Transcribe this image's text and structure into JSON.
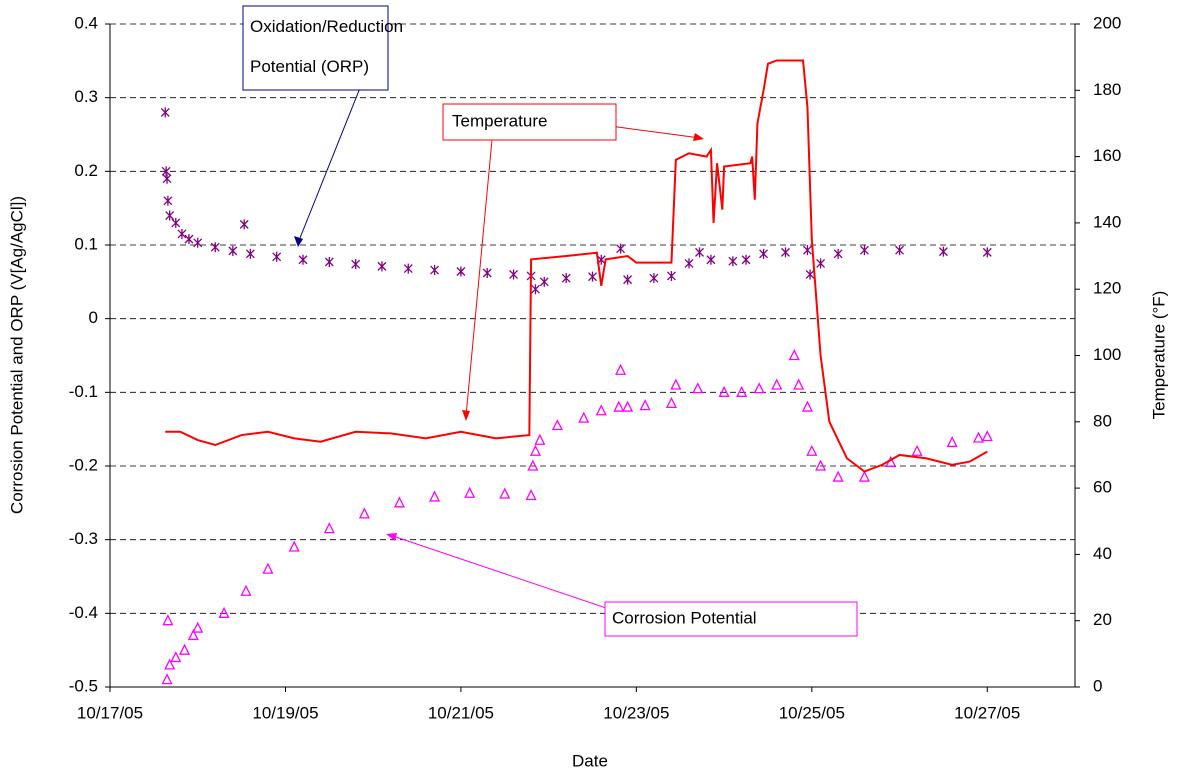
{
  "chart_data": {
    "type": "line",
    "x_label": "Date",
    "y_label": "Corrosion Potential and ORP (V[Ag/AgCl])",
    "y2_label": "Temperature (°F)",
    "xlim": [
      17,
      28
    ],
    "xticks": [
      {
        "value": 17,
        "label": "10/17/05"
      },
      {
        "value": 19,
        "label": "10/19/05"
      },
      {
        "value": 21,
        "label": "10/21/05"
      },
      {
        "value": 23,
        "label": "10/23/05"
      },
      {
        "value": 25,
        "label": "10/25/05"
      },
      {
        "value": 27,
        "label": "10/27/05"
      }
    ],
    "ylim": [
      -0.5,
      0.4
    ],
    "yticks": [
      -0.5,
      -0.4,
      -0.3,
      -0.2,
      -0.1,
      0,
      0.1,
      0.2,
      0.3,
      0.4
    ],
    "y2lim": [
      0,
      200
    ],
    "y2ticks": [
      0,
      20,
      40,
      60,
      80,
      100,
      120,
      140,
      160,
      180,
      200
    ],
    "grid": true,
    "series": [
      {
        "name": "Oxidation/Reduction Potential (ORP)",
        "color": "#800080",
        "marker": "asterisk",
        "x": [
          17.63,
          17.64,
          17.65,
          17.66,
          17.68,
          17.75,
          17.82,
          17.9,
          18.0,
          18.2,
          18.4,
          18.53,
          18.6,
          18.9,
          19.2,
          19.5,
          19.8,
          20.1,
          20.4,
          20.7,
          21.0,
          21.3,
          21.6,
          21.8,
          21.85,
          21.95,
          22.2,
          22.5,
          22.6,
          22.82,
          22.9,
          23.2,
          23.4,
          23.6,
          23.72,
          23.85,
          24.1,
          24.25,
          24.45,
          24.7,
          24.95,
          24.98,
          25.1,
          25.3,
          25.6,
          26.0,
          26.5,
          27.0
        ],
        "values": [
          0.28,
          0.2,
          0.19,
          0.16,
          0.14,
          0.13,
          0.115,
          0.108,
          0.103,
          0.097,
          0.092,
          0.128,
          0.088,
          0.084,
          0.08,
          0.077,
          0.074,
          0.071,
          0.068,
          0.066,
          0.064,
          0.062,
          0.06,
          0.058,
          0.04,
          0.05,
          0.055,
          0.057,
          0.08,
          0.095,
          0.053,
          0.055,
          0.058,
          0.075,
          0.09,
          0.08,
          0.078,
          0.08,
          0.088,
          0.09,
          0.093,
          0.06,
          0.075,
          0.088,
          0.093,
          0.093,
          0.091,
          0.09
        ]
      },
      {
        "name": "Corrosion Potential",
        "color": "#ff00ff",
        "marker": "triangle",
        "x": [
          17.65,
          17.66,
          17.68,
          17.75,
          17.85,
          17.95,
          18.0,
          18.3,
          18.55,
          18.8,
          19.1,
          19.5,
          19.9,
          20.3,
          20.7,
          21.1,
          21.5,
          21.8,
          21.82,
          21.85,
          21.9,
          22.1,
          22.4,
          22.6,
          22.8,
          22.82,
          22.9,
          23.1,
          23.4,
          23.45,
          23.7,
          24.0,
          24.2,
          24.4,
          24.6,
          24.8,
          24.85,
          24.95,
          25.0,
          25.1,
          25.3,
          25.6,
          25.9,
          26.2,
          26.6,
          26.9,
          27.0
        ],
        "values": [
          -0.49,
          -0.41,
          -0.47,
          -0.46,
          -0.45,
          -0.43,
          -0.42,
          -0.4,
          -0.37,
          -0.34,
          -0.31,
          -0.285,
          -0.265,
          -0.25,
          -0.242,
          -0.237,
          -0.238,
          -0.24,
          -0.2,
          -0.18,
          -0.165,
          -0.145,
          -0.135,
          -0.125,
          -0.12,
          -0.07,
          -0.12,
          -0.118,
          -0.115,
          -0.09,
          -0.095,
          -0.1,
          -0.1,
          -0.095,
          -0.09,
          -0.05,
          -0.09,
          -0.12,
          -0.18,
          -0.2,
          -0.215,
          -0.215,
          -0.195,
          -0.18,
          -0.168,
          -0.162,
          -0.16
        ]
      },
      {
        "name": "Temperature",
        "color": "#ff0000",
        "marker": null,
        "axis": "y2",
        "x": [
          17.63,
          17.8,
          18.0,
          18.2,
          18.5,
          18.8,
          19.1,
          19.4,
          19.8,
          20.2,
          20.6,
          21.0,
          21.4,
          21.78,
          21.8,
          22.2,
          22.55,
          22.6,
          22.65,
          22.9,
          23.0,
          23.4,
          23.45,
          23.6,
          23.8,
          23.85,
          23.88,
          23.92,
          23.98,
          24.0,
          24.3,
          24.32,
          24.35,
          24.38,
          24.45,
          24.5,
          24.6,
          24.9,
          24.95,
          25.0,
          25.1,
          25.2,
          25.4,
          25.6,
          25.8,
          26.0,
          26.3,
          26.6,
          26.8,
          27.0
        ],
        "values": [
          77,
          77,
          74.5,
          73,
          76,
          77,
          75,
          74,
          77,
          76.5,
          75,
          77,
          75,
          76,
          129,
          130,
          131,
          121,
          129,
          130,
          128,
          128,
          159,
          161,
          160,
          162,
          140,
          158,
          144,
          157,
          158,
          160,
          147,
          170,
          180,
          188,
          189,
          189,
          175,
          135,
          100,
          80,
          69,
          65,
          67,
          70,
          69,
          67,
          68,
          71
        ]
      }
    ]
  }
}
